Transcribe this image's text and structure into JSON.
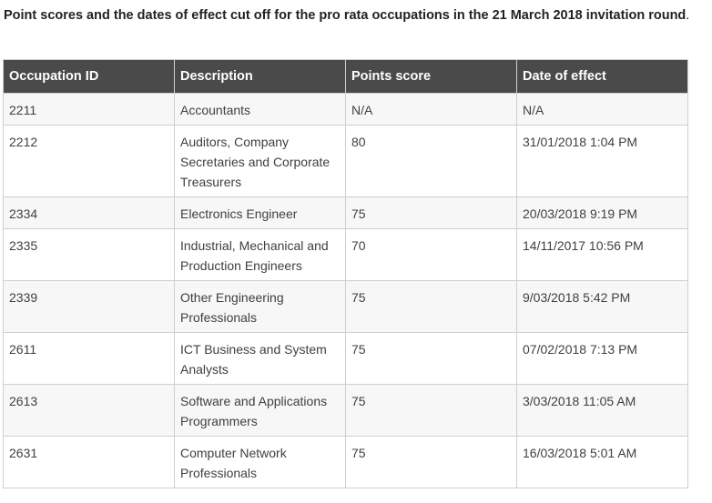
{
  "caption": {
    "bold_text": "Point scores and the dates of effect cut off for the pro rata occupations in the 21 March 2018 invitation round",
    "trailing": "."
  },
  "table": {
    "headers": [
      "Occupation ID",
      "Description",
      "Points score",
      "Date of effect"
    ],
    "rows": [
      {
        "id": "2211",
        "description": "Accountants",
        "points": "N/A",
        "date": "N/A"
      },
      {
        "id": "2212",
        "description": "Auditors, Company Secretaries and Corporate Treasurers",
        "points": "80",
        "date": "31/01/2018  1:04 PM"
      },
      {
        "id": "2334",
        "description": "Electronics Engineer",
        "points": "75",
        "date": "20/03/2018  9:19 PM"
      },
      {
        "id": "2335",
        "description": "Industrial, Mechanical and Production Engineers",
        "points": "70",
        "date": "14/11/2017  10:56 PM"
      },
      {
        "id": "2339",
        "description": "Other Engineering Professionals",
        "points": "75",
        "date": "9/03/2018  5:42 PM"
      },
      {
        "id": "2611",
        "description": "ICT Business and System Analysts",
        "points": "75",
        "date": "07/02/2018 7:13 PM"
      },
      {
        "id": "2613",
        "description": "Software and Applications Programmers",
        "points": "75",
        "date": "3/03/2018  11:05 AM"
      },
      {
        "id": "2631",
        "description": "Computer Network Professionals",
        "points": "75",
        "date": "16/03/2018  5:01 AM"
      }
    ]
  }
}
